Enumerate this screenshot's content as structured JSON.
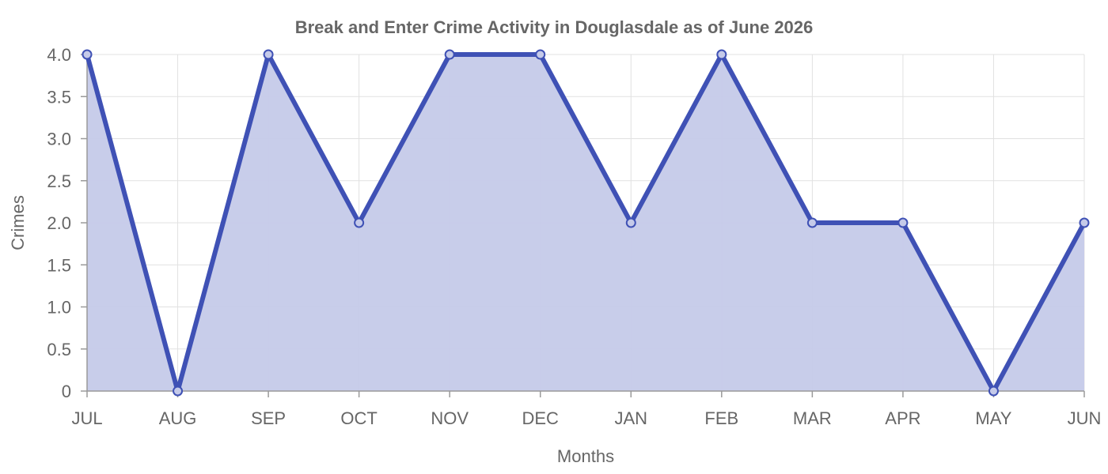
{
  "chart_data": {
    "type": "area",
    "title": "Break and Enter Crime Activity in Douglasdale as of June 2026",
    "xlabel": "Months",
    "ylabel": "Crimes",
    "categories": [
      "JUL",
      "AUG",
      "SEP",
      "OCT",
      "NOV",
      "DEC",
      "JAN",
      "FEB",
      "MAR",
      "APR",
      "MAY",
      "JUN"
    ],
    "series": [
      {
        "values": [
          4,
          0,
          4,
          2,
          4,
          4,
          2,
          4,
          2,
          2,
          0,
          2
        ],
        "color": "#3f51b5",
        "fill": "#c5cae9"
      }
    ],
    "ylim": [
      0,
      4
    ],
    "yticks": [
      "0",
      "0.5",
      "1.0",
      "1.5",
      "2.0",
      "2.5",
      "3.0",
      "3.5",
      "4.0"
    ],
    "grid": true,
    "legend": "none"
  }
}
